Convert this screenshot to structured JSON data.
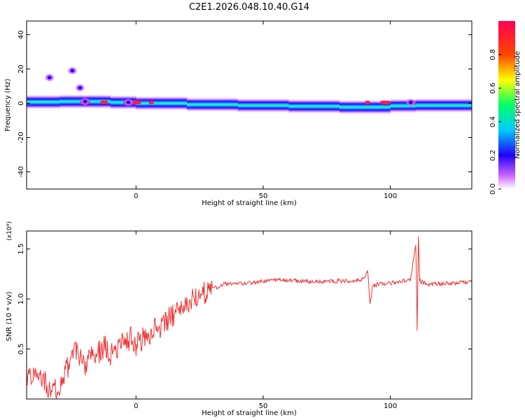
{
  "title": "C2E1.2026.048.10.40.G14",
  "chart_data": [
    {
      "type": "heatmap",
      "xlabel": "Height of straight line (km)",
      "ylabel": "Frequency (Hz)",
      "xlim": [
        -43,
        132
      ],
      "ylim": [
        -50,
        48
      ],
      "x_ticks": [
        0,
        50,
        100
      ],
      "y_ticks": [
        -40,
        -20,
        0,
        20,
        40
      ],
      "colorbar": {
        "label": "Normalized spectral amplitude",
        "range": [
          0,
          1
        ],
        "ticks": [
          "0.0",
          "0.2",
          "0.4",
          "0.6",
          "0.8"
        ]
      },
      "ridge_center_hz": [
        [
          -43,
          1
        ],
        [
          -30,
          0.5
        ],
        [
          -20,
          1.5
        ],
        [
          -10,
          0.5
        ],
        [
          0,
          0.5
        ],
        [
          20,
          -0.5
        ],
        [
          40,
          -1
        ],
        [
          60,
          -1.5
        ],
        [
          80,
          -2
        ],
        [
          90,
          -2.5
        ],
        [
          100,
          -2
        ],
        [
          110,
          -1
        ],
        [
          132,
          -1.5
        ]
      ],
      "spots": [
        {
          "x": -34,
          "y": 15
        },
        {
          "x": -25,
          "y": 19
        },
        {
          "x": -22,
          "y": 9
        },
        {
          "x": -20,
          "y": 1
        },
        {
          "x": -3,
          "y": 0.5
        },
        {
          "x": 108,
          "y": 0.5
        }
      ]
    },
    {
      "type": "line",
      "xlabel": "Height of straight line (km)",
      "ylabel": "SNR (10 * v/v)",
      "multiplier": "(x10⁴)",
      "xlim": [
        -43,
        132
      ],
      "ylim": [
        0,
        1.68
      ],
      "x_ticks": [
        0,
        50,
        100
      ],
      "y_ticks": [
        0.5,
        1.0,
        1.5
      ],
      "color": "#ee3333",
      "series": [
        {
          "x": [
            -43,
            -40,
            -36,
            -33,
            -30,
            -27,
            -25,
            -23,
            -20,
            -18,
            -15,
            -12,
            -10,
            -8,
            -5,
            -2,
            0,
            3,
            5,
            8,
            10,
            13,
            15,
            18,
            20,
            23,
            25,
            28,
            30,
            33,
            35,
            40,
            45,
            50,
            55,
            60,
            65,
            70,
            75,
            80,
            85,
            88,
            90,
            91,
            92,
            93,
            95,
            100,
            105,
            108,
            110,
            110.5,
            111,
            111.5,
            112,
            115,
            120,
            125,
            132
          ],
          "values": [
            0.2,
            0.3,
            0.2,
            0.05,
            0.15,
            0.3,
            0.45,
            0.5,
            0.3,
            0.5,
            0.45,
            0.55,
            0.45,
            0.5,
            0.55,
            0.62,
            0.55,
            0.6,
            0.65,
            0.72,
            0.7,
            0.8,
            0.85,
            0.88,
            0.95,
            1.0,
            1.05,
            1.08,
            1.1,
            1.13,
            1.15,
            1.15,
            1.16,
            1.18,
            1.19,
            1.19,
            1.18,
            1.17,
            1.18,
            1.18,
            1.18,
            1.19,
            1.2,
            1.3,
            0.95,
            1.12,
            1.15,
            1.16,
            1.18,
            1.2,
            1.55,
            0.7,
            1.62,
            1.2,
            1.17,
            1.15,
            1.15,
            1.16,
            1.17
          ]
        }
      ]
    }
  ]
}
